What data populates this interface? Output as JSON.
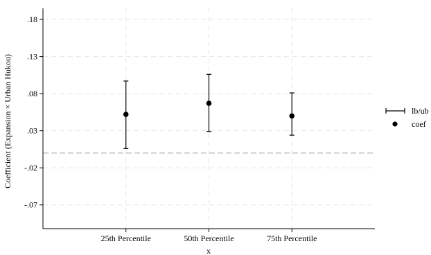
{
  "chart_data": {
    "type": "scatter",
    "title": "",
    "xlabel": "x",
    "ylabel": "Coefficient (Expansion × Urban Hukou)",
    "categories": [
      "25th Percentile",
      "50th Percentile",
      "75th Percentile"
    ],
    "series": [
      {
        "name": "coef",
        "values": [
          0.052,
          0.067,
          0.05
        ]
      },
      {
        "name": "lb/ub",
        "lower": [
          0.006,
          0.029,
          0.024
        ],
        "upper": [
          0.097,
          0.106,
          0.081
        ]
      }
    ],
    "yticks": [
      -0.07,
      -0.02,
      0.03,
      0.08,
      0.13,
      0.18
    ],
    "ytick_labels": [
      "-.07",
      "-.02",
      ".03",
      ".08",
      ".13",
      ".18"
    ],
    "ylim": [
      -0.102,
      0.195
    ],
    "reference_line": 0,
    "grid": true,
    "legend_position": "right",
    "colors": {
      "marker": "#000000",
      "grid": "#e6e6e6",
      "reference": "#bdbdbd"
    }
  }
}
